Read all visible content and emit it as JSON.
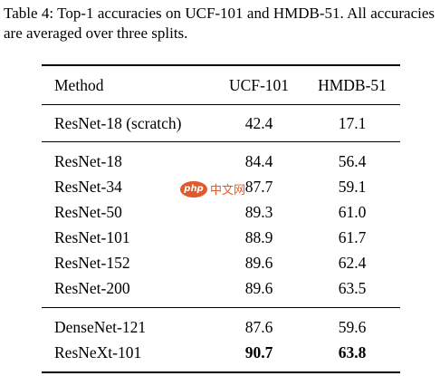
{
  "caption": "Table 4: Top-1 accuracies on UCF-101 and HMDB-51. All accuracies are averaged over three splits.",
  "table": {
    "headers": [
      "Method",
      "UCF-101",
      "HMDB-51"
    ],
    "group1": [
      {
        "method": "ResNet-18 (scratch)",
        "ucf": "42.4",
        "hmdb": "17.1"
      }
    ],
    "group2": [
      {
        "method": "ResNet-18",
        "ucf": "84.4",
        "hmdb": "56.4"
      },
      {
        "method": "ResNet-34",
        "ucf": "87.7",
        "hmdb": "59.1"
      },
      {
        "method": "ResNet-50",
        "ucf": "89.3",
        "hmdb": "61.0"
      },
      {
        "method": "ResNet-101",
        "ucf": "88.9",
        "hmdb": "61.7"
      },
      {
        "method": "ResNet-152",
        "ucf": "89.6",
        "hmdb": "62.4"
      },
      {
        "method": "ResNet-200",
        "ucf": "89.6",
        "hmdb": "63.5"
      }
    ],
    "group3": [
      {
        "method": "DenseNet-121",
        "ucf": "87.6",
        "hmdb": "59.6"
      },
      {
        "method": "ResNeXt-101",
        "ucf": "90.7",
        "hmdb": "63.8"
      }
    ]
  },
  "watermark": {
    "logo": "php",
    "text": "中文网",
    "color": "#e05a2a"
  }
}
